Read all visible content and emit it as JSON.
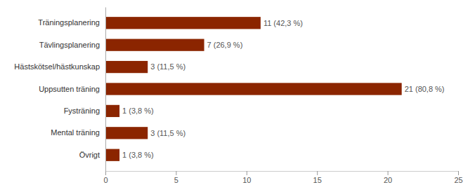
{
  "chart_data": {
    "type": "bar",
    "orientation": "horizontal",
    "categories": [
      "Träningsplanering",
      "Tävlingsplanering",
      "Hästskötsel/hästkunskap",
      "Uppsutten träning",
      "Fysträning",
      "Mental träning",
      "Övrigt"
    ],
    "values": [
      11,
      7,
      3,
      21,
      1,
      3,
      1
    ],
    "value_labels": [
      "11 (42,3 %)",
      "7 (26,9 %)",
      "3 (11,5 %)",
      "21 (80,8 %)",
      "1 (3,8 %)",
      "3 (11,5 %)",
      "1 (3,8 %)"
    ],
    "data_labels": true,
    "color": "#8B2500",
    "xlim": [
      0,
      25
    ],
    "xticks": [
      0,
      5,
      10,
      15,
      20,
      25
    ],
    "grid": false
  }
}
